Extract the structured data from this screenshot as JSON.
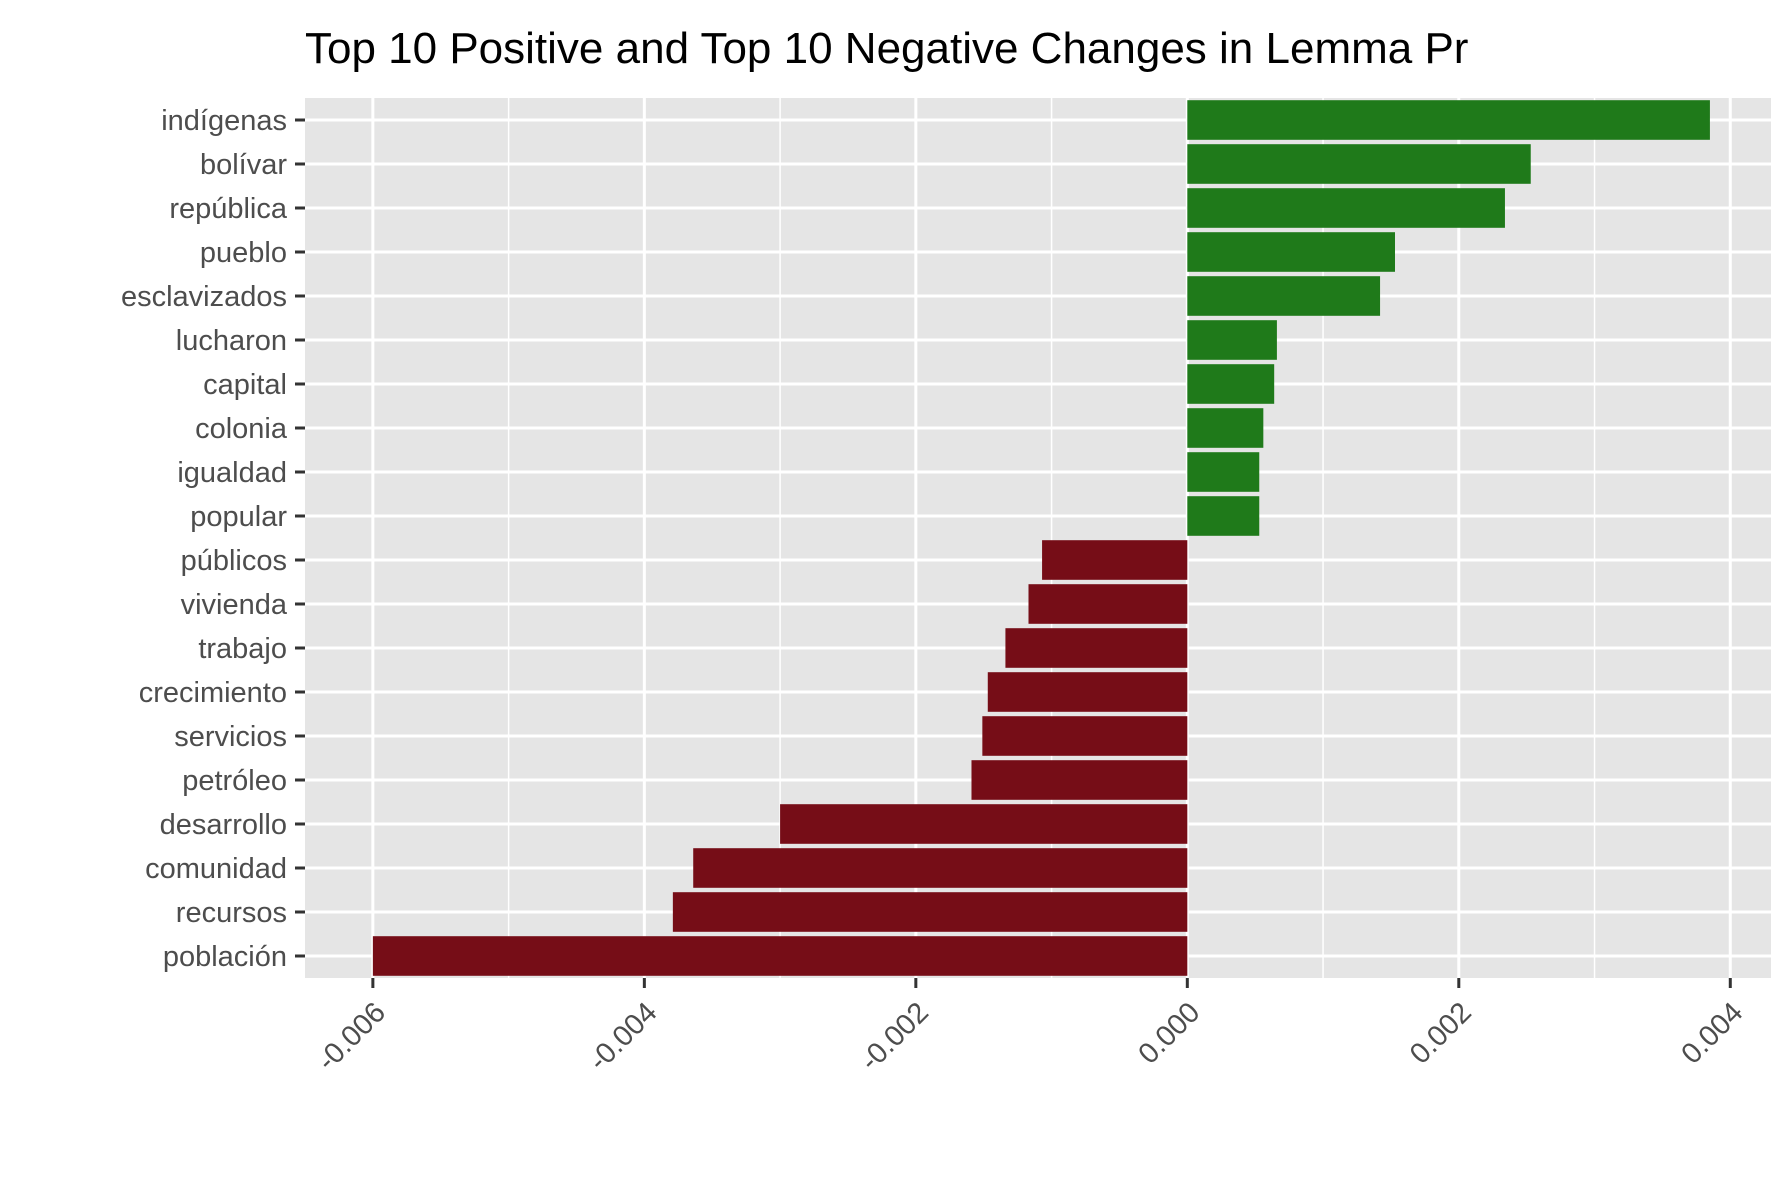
{
  "chart_data": {
    "type": "bar",
    "orientation": "horizontal",
    "title": "Top 10 Positive and Top 10 Negative Changes in Lemma Pr",
    "xlabel": "",
    "ylabel": "",
    "xlim": [
      -0.0065,
      0.0043
    ],
    "x_ticks": [
      "-0.006",
      "-0.004",
      "-0.002",
      "0.000",
      "0.002",
      "0.004"
    ],
    "x_tick_values": [
      -0.006,
      -0.004,
      -0.002,
      0.0,
      0.002,
      0.004
    ],
    "grid": true,
    "legend": "none",
    "colors": {
      "positive": "#1f7a1a",
      "negative": "#760d17",
      "panel": "#e5e5e5",
      "grid": "#ffffff"
    },
    "categories": [
      "indígenas",
      "bolívar",
      "república",
      "pueblo",
      "esclavizados",
      "lucharon",
      "capital",
      "colonia",
      "igualdad",
      "popular",
      "públicos",
      "vivienda",
      "trabajo",
      "crecimiento",
      "servicios",
      "petróleo",
      "desarrollo",
      "comunidad",
      "recursos",
      "población"
    ],
    "values": [
      0.00385,
      0.00253,
      0.00234,
      0.00153,
      0.00142,
      0.00066,
      0.00064,
      0.00056,
      0.00053,
      0.00053,
      -0.00107,
      -0.00117,
      -0.00134,
      -0.00147,
      -0.00151,
      -0.00159,
      -0.003,
      -0.00364,
      -0.00379,
      -0.006
    ]
  }
}
